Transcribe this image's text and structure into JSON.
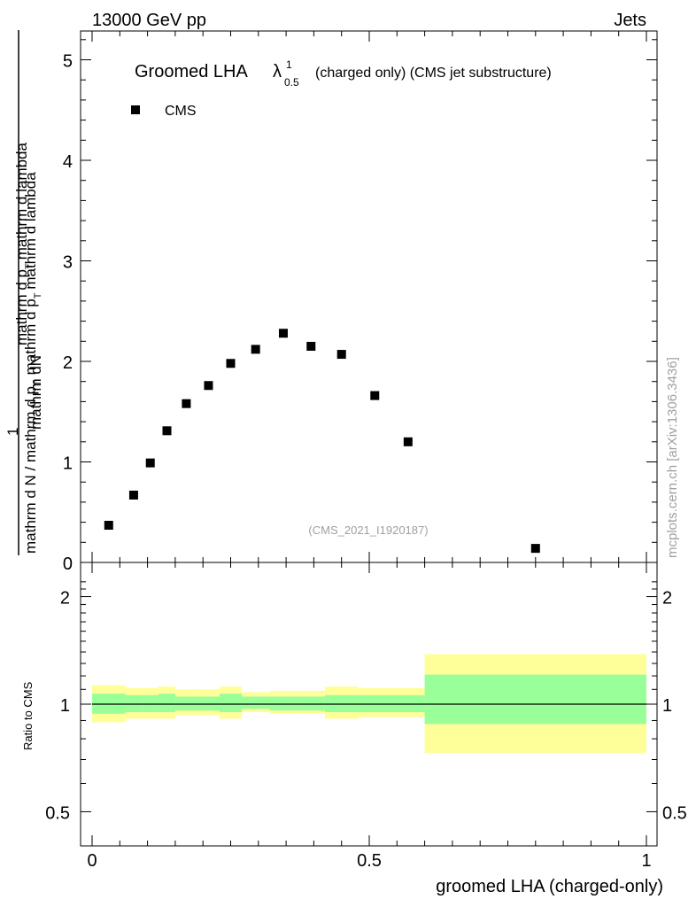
{
  "header": {
    "energy": "13000 GeV pp",
    "category": "Jets"
  },
  "side_label": "mcplots.cern.ch [arXiv:1306.3436]",
  "chart_data": [
    {
      "type": "scatter",
      "title_main": "Groomed LHA",
      "title_symbol": "λ",
      "title_sup": "1",
      "title_sub": "0.5",
      "title_rest": "(charged only) (CMS jet substructure)",
      "watermark": "(CMS_2021_I1920187)",
      "legend": [
        {
          "name": "CMS",
          "marker": "square"
        }
      ],
      "ylabel_numerator": "mathrm dN",
      "ylabel_numerator_2": "mathrm d p",
      "ylabel_numerator_sub": "T",
      "ylabel_numerator_rest": "mathrm d lambda",
      "ylabel_one": "1",
      "ylabel_den_1": "mathrm d N / mathrm d p",
      "ylabel_den_sub": "T",
      "ylabel_den_2": "mathrm d p",
      "ylabel_den_sub2": "T",
      "ylabel_den_3": "mathrm d lambda",
      "xlim": [
        0,
        1
      ],
      "ylim": [
        0,
        5.3
      ],
      "yticks": [
        0,
        1,
        2,
        3,
        4,
        5
      ],
      "ytick_labels": [
        "0",
        "1",
        "2",
        "3",
        "4",
        "5"
      ],
      "series": [
        {
          "name": "CMS",
          "x": [
            0.03,
            0.075,
            0.105,
            0.135,
            0.17,
            0.21,
            0.25,
            0.295,
            0.345,
            0.395,
            0.45,
            0.51,
            0.57,
            0.8
          ],
          "y": [
            0.37,
            0.67,
            0.99,
            1.31,
            1.58,
            1.76,
            1.98,
            2.12,
            2.28,
            2.15,
            2.07,
            1.66,
            1.2,
            0.14
          ]
        }
      ]
    },
    {
      "type": "area",
      "ylabel": "Ratio to CMS",
      "xlabel": "groomed LHA (charged-only)",
      "xlim": [
        0,
        1
      ],
      "ylim": [
        0.4,
        2.3
      ],
      "yscale": "log",
      "yticks": [
        0.5,
        1,
        2
      ],
      "ytick_labels": [
        "0.5",
        "1",
        "2"
      ],
      "xticks": [
        0,
        0.5,
        1
      ],
      "xtick_labels": [
        "0",
        "0.5",
        "1"
      ],
      "reference_line": 1,
      "bin_edges": [
        0,
        0.06,
        0.09,
        0.12,
        0.15,
        0.19,
        0.23,
        0.27,
        0.32,
        0.37,
        0.42,
        0.48,
        0.54,
        0.6,
        1.0
      ],
      "band_outer_low": [
        0.89,
        0.91,
        0.91,
        0.91,
        0.93,
        0.93,
        0.91,
        0.95,
        0.94,
        0.94,
        0.91,
        0.92,
        0.92,
        0.73
      ],
      "band_outer_high": [
        1.13,
        1.11,
        1.11,
        1.12,
        1.1,
        1.1,
        1.12,
        1.08,
        1.09,
        1.09,
        1.12,
        1.11,
        1.11,
        1.38
      ],
      "band_inner_low": [
        0.94,
        0.95,
        0.95,
        0.95,
        0.96,
        0.96,
        0.95,
        0.97,
        0.96,
        0.96,
        0.95,
        0.95,
        0.95,
        0.88
      ],
      "band_inner_high": [
        1.07,
        1.06,
        1.06,
        1.07,
        1.05,
        1.05,
        1.07,
        1.05,
        1.05,
        1.05,
        1.06,
        1.06,
        1.06,
        1.21
      ],
      "colors": {
        "outer": "#ffff99",
        "inner": "#99ff99",
        "line": "#000000"
      }
    }
  ]
}
